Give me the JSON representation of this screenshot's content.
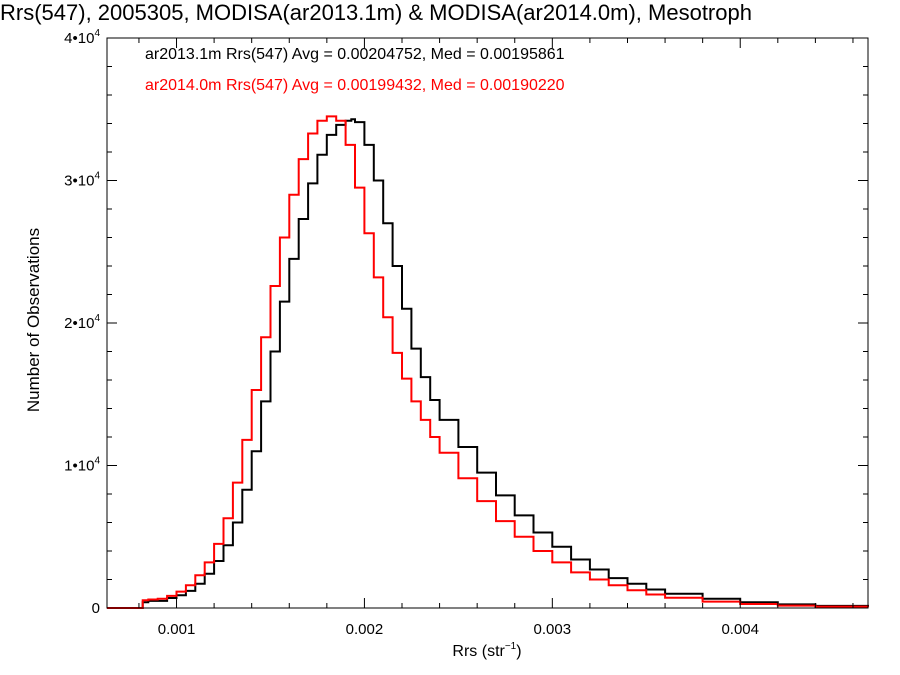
{
  "chart_data": {
    "type": "line",
    "title": "Rrs(547), 2005305, MODISA(ar2013.1m) & MODISA(ar2014.0m), Mesotroph",
    "xlabel_main": "Rrs (str",
    "xlabel_sup": "−1",
    "xlabel_close": ")",
    "ylabel": "Number of Observations",
    "xlim": [
      0.00063,
      0.00468
    ],
    "ylim": [
      0,
      40000
    ],
    "x_ticks": [
      {
        "value": 0.001,
        "label": "0.001"
      },
      {
        "value": 0.002,
        "label": "0.002"
      },
      {
        "value": 0.003,
        "label": "0.003"
      },
      {
        "value": 0.004,
        "label": "0.004"
      }
    ],
    "y_ticks": [
      {
        "value": 0,
        "base": "0",
        "exp": ""
      },
      {
        "value": 10000,
        "base": "1•10",
        "exp": "4"
      },
      {
        "value": 20000,
        "base": "2•10",
        "exp": "4"
      },
      {
        "value": 30000,
        "base": "3•10",
        "exp": "4"
      },
      {
        "value": 40000,
        "base": "4•10",
        "exp": "4"
      }
    ],
    "grid": false,
    "legend_position": "top-left",
    "series": [
      {
        "name": "ar2013.1m Rrs(547) Avg = 0.00204752, Med = 0.00195861",
        "color": "#000000",
        "step": true,
        "x": [
          0.00063,
          0.00078,
          0.00082,
          0.00085,
          0.0009,
          0.00095,
          0.001,
          0.00105,
          0.0011,
          0.00115,
          0.0012,
          0.00125,
          0.0013,
          0.00135,
          0.0014,
          0.00145,
          0.0015,
          0.00155,
          0.0016,
          0.00165,
          0.0017,
          0.00175,
          0.0018,
          0.00185,
          0.0019,
          0.00193,
          0.00195,
          0.002,
          0.00205,
          0.0021,
          0.00215,
          0.0022,
          0.00225,
          0.0023,
          0.00235,
          0.0024,
          0.0025,
          0.0026,
          0.0027,
          0.0028,
          0.0029,
          0.003,
          0.0031,
          0.0032,
          0.0033,
          0.0034,
          0.0035,
          0.0036,
          0.0038,
          0.004,
          0.0042,
          0.0044,
          0.00468
        ],
        "y": [
          0,
          0,
          400,
          500,
          500,
          700,
          900,
          1200,
          1700,
          2400,
          3300,
          4400,
          6000,
          8300,
          11000,
          14500,
          18000,
          21500,
          24500,
          27300,
          29800,
          31800,
          33200,
          33900,
          34200,
          34300,
          34100,
          32500,
          30000,
          27000,
          24000,
          21000,
          18200,
          16200,
          14600,
          13200,
          11300,
          9500,
          7900,
          6500,
          5300,
          4300,
          3400,
          2700,
          2100,
          1700,
          1300,
          1000,
          650,
          400,
          250,
          150,
          80
        ]
      },
      {
        "name": "ar2014.0m Rrs(547) Avg = 0.00199432, Med = 0.00190220",
        "color": "#ff0000",
        "step": true,
        "x": [
          0.00063,
          0.00078,
          0.00082,
          0.00085,
          0.0009,
          0.00095,
          0.001,
          0.00105,
          0.0011,
          0.00115,
          0.0012,
          0.00125,
          0.0013,
          0.00135,
          0.0014,
          0.00145,
          0.0015,
          0.00155,
          0.0016,
          0.00165,
          0.0017,
          0.00175,
          0.0018,
          0.00183,
          0.00185,
          0.0019,
          0.00195,
          0.002,
          0.00205,
          0.0021,
          0.00215,
          0.0022,
          0.00225,
          0.0023,
          0.00235,
          0.0024,
          0.0025,
          0.0026,
          0.0027,
          0.0028,
          0.0029,
          0.003,
          0.0031,
          0.0032,
          0.0033,
          0.0034,
          0.0035,
          0.0036,
          0.0038,
          0.004,
          0.0042,
          0.0044,
          0.00468
        ],
        "y": [
          0,
          0,
          550,
          600,
          650,
          850,
          1150,
          1600,
          2300,
          3200,
          4500,
          6300,
          8800,
          11800,
          15300,
          19000,
          22600,
          26000,
          29000,
          31500,
          33300,
          34200,
          34500,
          34500,
          34200,
          32500,
          29500,
          26300,
          23200,
          20400,
          17900,
          16100,
          14500,
          13200,
          12000,
          10900,
          9100,
          7500,
          6100,
          5000,
          4000,
          3200,
          2500,
          2000,
          1600,
          1250,
          950,
          720,
          450,
          280,
          170,
          100,
          50
        ]
      }
    ]
  }
}
